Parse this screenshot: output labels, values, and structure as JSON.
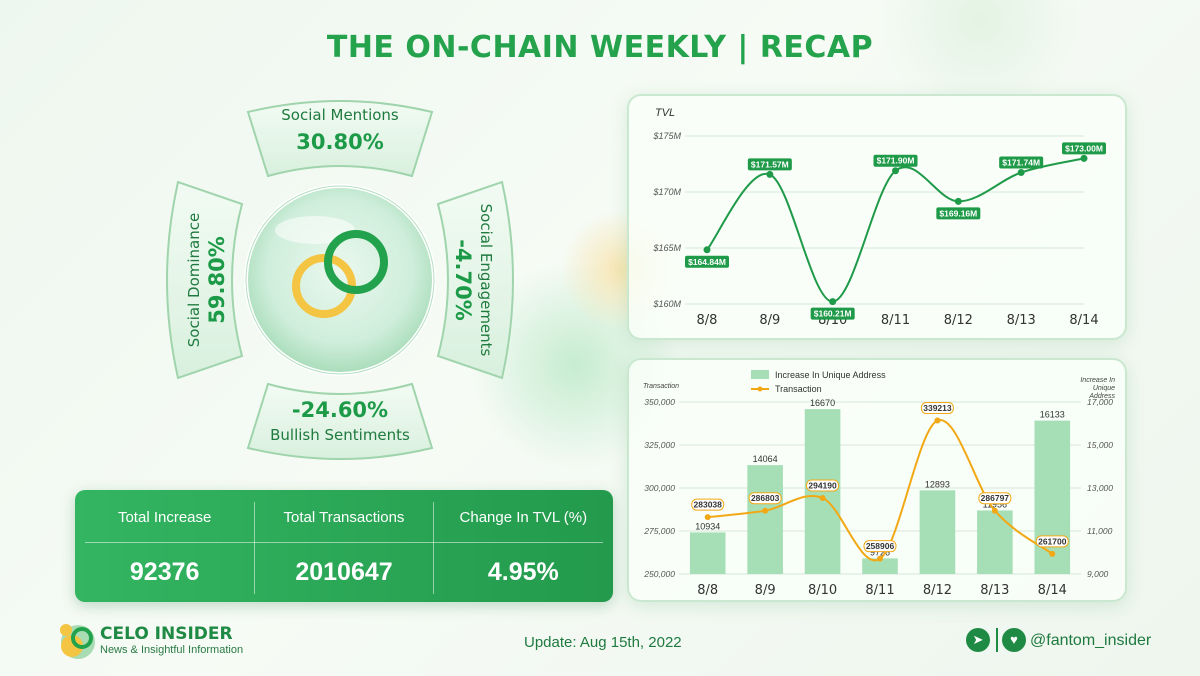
{
  "header": {
    "title": "THE ON-CHAIN WEEKLY | RECAP"
  },
  "social": {
    "mentions": {
      "label": "Social Mentions",
      "value": "30.80%"
    },
    "dominance": {
      "label": "Social Dominance",
      "value": "59.80%"
    },
    "engagements": {
      "label": "Social Engagements",
      "value": "-4.70%"
    },
    "sentiments": {
      "label": "Bullish Sentiments",
      "value": "-24.60%"
    }
  },
  "stats": {
    "headers": [
      "Total Increase",
      "Total Transactions",
      "Change In TVL (%)"
    ],
    "values": [
      "92376",
      "2010647",
      "4.95%"
    ]
  },
  "chart_data": [
    {
      "type": "line",
      "title": "TVL",
      "categories": [
        "8/8",
        "8/9",
        "8/10",
        "8/11",
        "8/12",
        "8/13",
        "8/14"
      ],
      "values": [
        164.84,
        171.57,
        160.21,
        171.9,
        169.16,
        171.74,
        173.0
      ],
      "labels": [
        "$164.84M",
        "$171.57M",
        "$160.21M",
        "$171.90M",
        "$169.16M",
        "$171.74M",
        "$173.00M"
      ],
      "yticks": [
        "$160M",
        "$165M",
        "$170M",
        "$175M"
      ],
      "ylim": [
        160,
        175
      ],
      "color": "#1f9a49"
    },
    {
      "type": "bar",
      "categories": [
        "8/8",
        "8/9",
        "8/10",
        "8/11",
        "8/12",
        "8/13",
        "8/14"
      ],
      "left_axis_label": "Transaction",
      "right_axis_label": [
        "Increase In",
        "Unique",
        "Address"
      ],
      "series": [
        {
          "name": "Increase In Unique Address",
          "type": "bar",
          "axis": "right",
          "values": [
            10934,
            14064,
            16670,
            9726,
            12893,
            11956,
            16133
          ],
          "color": "#a6dfb6"
        },
        {
          "name": "Transaction",
          "type": "line",
          "axis": "left",
          "values": [
            283038,
            286803,
            294190,
            258906,
            339213,
            286797,
            261700
          ],
          "color": "#f2a815"
        }
      ],
      "left_ylim": [
        250000,
        350000
      ],
      "left_ticks": [
        "250,000",
        "275,000",
        "300,000",
        "325,000",
        "350,000"
      ],
      "right_ylim": [
        9000,
        17000
      ],
      "right_ticks": [
        "9,000",
        "11,000",
        "13,000",
        "15,000",
        "17,000"
      ],
      "legend": "top-center"
    }
  ],
  "footer": {
    "brand": "CELO INSIDER",
    "tagline": "News & Insightful Information",
    "update": "Update: Aug 15th, 2022",
    "handle": "@fantom_insider",
    "icons": [
      "telegram-icon",
      "twitter-icon"
    ]
  }
}
